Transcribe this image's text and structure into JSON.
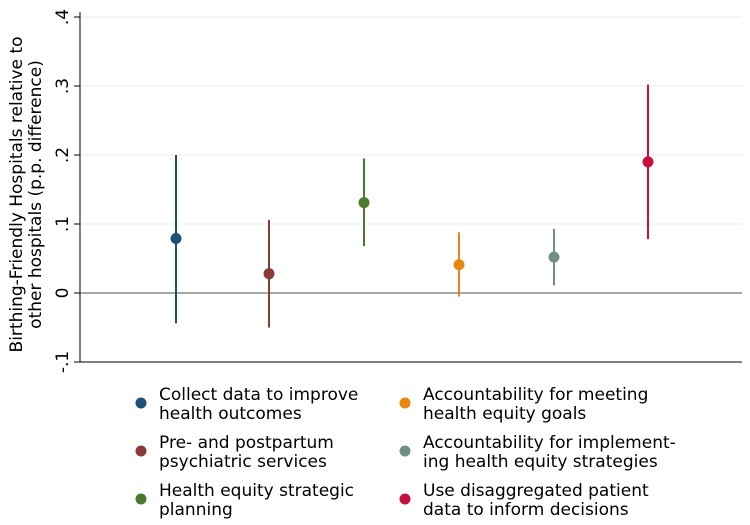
{
  "chart_data": {
    "type": "scatter",
    "subtype": "point-estimate-with-confidence-intervals",
    "title": "",
    "ylabel_lines": [
      "Birthing-Friendly Hospitals relative to",
      "other hospitals (p.p. difference)"
    ],
    "xlabel": "",
    "ylim": [
      -0.1,
      0.4
    ],
    "yticks": [
      {
        "value": -0.1,
        "label": "-.1"
      },
      {
        "value": 0,
        "label": "0"
      },
      {
        "value": 0.1,
        "label": ".1"
      },
      {
        "value": 0.2,
        "label": ".2"
      },
      {
        "value": 0.3,
        "label": ".3"
      },
      {
        "value": 0.4,
        "label": ".4"
      }
    ],
    "grid": true,
    "zero_line": true,
    "legend_position": "bottom",
    "series": [
      {
        "name_lines": [
          "Collect data to improve",
          "health outcomes"
        ],
        "color": "#1f4e79",
        "estimate": 0.079,
        "ci": [
          -0.044,
          0.2
        ]
      },
      {
        "name_lines": [
          "Pre- and postpartum",
          "psychiatric services"
        ],
        "color": "#8b3a3a",
        "estimate": 0.028,
        "ci": [
          -0.05,
          0.106
        ]
      },
      {
        "name_lines": [
          "Health equity strategic",
          "planning"
        ],
        "color": "#4a7a2c",
        "estimate": 0.131,
        "ci": [
          0.068,
          0.195
        ]
      },
      {
        "name_lines": [
          "Accountability for meeting",
          "health equity goals"
        ],
        "color": "#e8870e",
        "estimate": 0.041,
        "ci": [
          -0.005,
          0.088
        ]
      },
      {
        "name_lines": [
          "Accountability for implement-",
          "ing health equity strategies"
        ],
        "color": "#6f8f86",
        "estimate": 0.052,
        "ci": [
          0.011,
          0.093
        ]
      },
      {
        "name_lines": [
          "Use disaggregated patient",
          "data to inform decisions"
        ],
        "color": "#c8103e",
        "estimate": 0.19,
        "ci": [
          0.078,
          0.302
        ]
      }
    ]
  }
}
